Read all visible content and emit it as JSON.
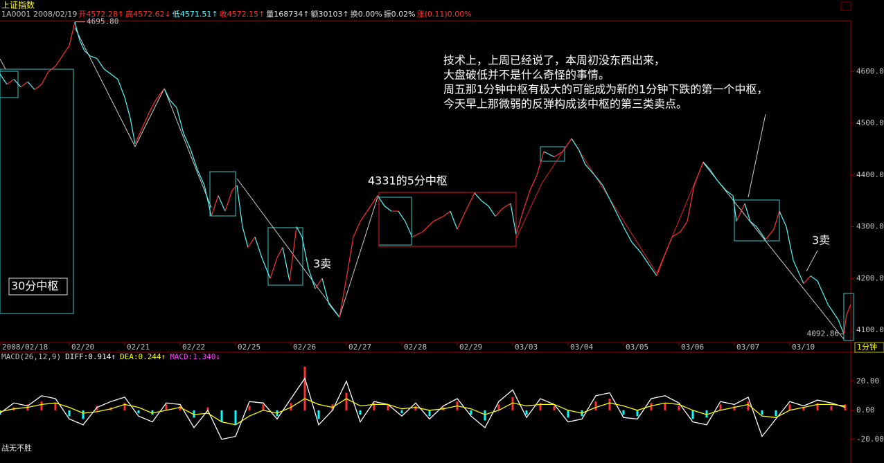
{
  "chart_data": [
    {
      "type": "line",
      "title": "上证指数",
      "info": [
        {
          "text": "1A0001 2008/02/19",
          "color": "#c0c0c0"
        },
        {
          "text": "开4572.28↑",
          "color": "#ff3232"
        },
        {
          "text": "高4572.62↓",
          "color": "#ff3232"
        },
        {
          "text": "低4571.51↑",
          "color": "#54fcfc"
        },
        {
          "text": "收4572.15↑",
          "color": "#ff3232"
        },
        {
          "text": "量168734↑",
          "color": "#e0e0e0"
        },
        {
          "text": "额30103↑",
          "color": "#e0e0e0"
        },
        {
          "text": "换0.00%",
          "color": "#e0e0e0"
        },
        {
          "text": "振0.02%",
          "color": "#e0e0e0"
        },
        {
          "text": "涨(0.11)0.00%",
          "color": "#ff3232"
        }
      ],
      "period": "1分钟",
      "x": [
        0,
        30,
        60,
        90,
        120,
        150,
        180,
        210,
        240,
        270,
        300,
        324,
        345,
        366,
        390,
        420,
        450,
        480,
        510,
        540,
        564,
        585,
        615,
        645,
        675,
        711,
        735,
        765,
        795,
        825,
        855,
        885,
        915,
        945,
        975,
        1005,
        1026,
        1050,
        1074,
        1104,
        1134,
        1170,
        1200,
        1224,
        1254,
        1284,
        1308,
        1335,
        1365,
        1395,
        1425,
        1470,
        1500,
        1530,
        1560,
        1590,
        1635,
        1665,
        1695,
        1725,
        1755,
        1785,
        1830,
        1875,
        1920,
        1950,
        1980,
        2016,
        2055,
        2085,
        2115,
        2145,
        2175,
        2211,
        2235,
        2265,
        2295,
        2325,
        2355,
        2400,
        2436,
        2475,
        2505,
        2535,
        2574,
        2610,
        2655,
        2700,
        2736,
        2775,
        2805,
        2844,
        2874,
        2910,
        2946,
        2976,
        3006,
        3045,
        3075,
        3105,
        3144,
        3174,
        3189,
        3225,
        3249,
        3276,
        3315,
        3351,
        3375,
        3405,
        3435,
        3480,
        3510,
        3540,
        3585,
        3630,
        3654,
        3666,
        3684
      ],
      "values": [
        4595,
        4575,
        4585,
        4570,
        4580,
        4565,
        4575,
        4600,
        4610,
        4630,
        4650,
        4695.8,
        4660,
        4640,
        4630,
        4625,
        4605,
        4595,
        4585,
        4550,
        4510,
        4460,
        4490,
        4520,
        4545,
        4567,
        4545,
        4530,
        4480,
        4450,
        4410,
        4380,
        4320,
        4360,
        4330,
        4370,
        4380,
        4300,
        4260,
        4280,
        4240,
        4200,
        4240,
        4260,
        4195,
        4300,
        4280,
        4220,
        4180,
        4200,
        4150,
        4125,
        4200,
        4280,
        4310,
        4330,
        4360,
        4340,
        4330,
        4330,
        4310,
        4280,
        4290,
        4310,
        4320,
        4330,
        4295,
        4330,
        4365,
        4350,
        4340,
        4320,
        4335,
        4345,
        4285,
        4330,
        4370,
        4400,
        4445,
        4435,
        4445,
        4470,
        4450,
        4420,
        4400,
        4380,
        4340,
        4300,
        4270,
        4250,
        4230,
        4205,
        4240,
        4280,
        4290,
        4310,
        4380,
        4425,
        4410,
        4390,
        4370,
        4360,
        4310,
        4345,
        4310,
        4300,
        4275,
        4295,
        4330,
        4300,
        4235,
        4190,
        4205,
        4195,
        4150,
        4120,
        4092.86,
        4130,
        4150
      ],
      "up_color": "#ff3232",
      "down_color": "#54fcfc",
      "xlim": [
        0,
        3684
      ],
      "xticks": [
        {
          "value": 0,
          "label": "2008/02/18"
        },
        {
          "value": 300,
          "label": "02/20"
        },
        {
          "value": 540,
          "label": "02/21"
        },
        {
          "value": 780,
          "label": "02/22"
        },
        {
          "value": 1020,
          "label": "02/25"
        },
        {
          "value": 1260,
          "label": "02/26"
        },
        {
          "value": 1500,
          "label": "02/27"
        },
        {
          "value": 1740,
          "label": "02/28"
        },
        {
          "value": 1980,
          "label": "02/29"
        },
        {
          "value": 2220,
          "label": "03/03"
        },
        {
          "value": 2460,
          "label": "03/04"
        },
        {
          "value": 2700,
          "label": "03/05"
        },
        {
          "value": 2940,
          "label": "03/06"
        },
        {
          "value": 3180,
          "label": "03/07"
        },
        {
          "value": 3420,
          "label": "03/10"
        }
      ],
      "ylim": [
        4076,
        4698
      ],
      "yticks": [
        {
          "value": 4100,
          "label": "4100.0"
        },
        {
          "value": 4200,
          "label": "4200.0"
        },
        {
          "value": 4300,
          "label": "4300.0"
        },
        {
          "value": 4400,
          "label": "4400.0"
        },
        {
          "value": 4500,
          "label": "4500.0"
        },
        {
          "value": 4600,
          "label": "4600.0"
        }
      ],
      "extreme_labels": [
        {
          "x": 324,
          "value": 4695.8,
          "label": "4695.80"
        },
        {
          "x": 3654,
          "value": 4092.86,
          "label": "4092.86"
        }
      ],
      "annotations": [
        "技术上，上周已经说了，本周初没东西出来，",
        "大盘破低并不是什么奇怪的事情。",
        "周五那1分钟中枢有极大的可能成为新的1分钟下跌的第一个中枢，",
        "今天早上那微弱的反弹构成该中枢的第三类卖点。"
      ],
      "labels": [
        "30分中枢",
        "4331的5分中枢",
        "3卖",
        "3卖"
      ]
    },
    {
      "type": "macd",
      "title": "MACD(26,12,9)",
      "x": [
        0,
        60,
        120,
        180,
        240,
        300,
        360,
        420,
        480,
        540,
        600,
        660,
        720,
        780,
        840,
        900,
        960,
        1020,
        1080,
        1140,
        1200,
        1260,
        1320,
        1380,
        1440,
        1500,
        1560,
        1620,
        1680,
        1740,
        1800,
        1860,
        1920,
        1980,
        2040,
        2100,
        2160,
        2220,
        2280,
        2340,
        2400,
        2460,
        2520,
        2580,
        2640,
        2700,
        2760,
        2820,
        2880,
        2940,
        3000,
        3060,
        3120,
        3180,
        3240,
        3300,
        3360,
        3420,
        3480,
        3540,
        3600,
        3660
      ],
      "xlim": [
        0,
        3684
      ],
      "ylim": [
        -32,
        38
      ],
      "yticks": [
        {
          "value": 20,
          "label": "20.00"
        },
        {
          "value": 0,
          "label": "0.00"
        },
        {
          "value": -20,
          "label": "-20.00"
        }
      ],
      "series": [
        {
          "name": "DIFF:0.914↑",
          "color": "#ffffff",
          "values": [
            -2,
            5,
            3,
            10,
            8,
            -6,
            -10,
            2,
            6,
            9,
            -4,
            -8,
            5,
            4,
            -12,
            0,
            -20,
            -18,
            6,
            5,
            -6,
            8,
            22,
            -10,
            0,
            20,
            -8,
            6,
            4,
            -4,
            5,
            -6,
            3,
            8,
            -4,
            -12,
            6,
            14,
            -5,
            8,
            4,
            -8,
            -6,
            10,
            12,
            -5,
            -6,
            8,
            10,
            5,
            -8,
            -10,
            6,
            4,
            9,
            -18,
            -6,
            6,
            3,
            7,
            5,
            2
          ]
        },
        {
          "name": "DEA:0.244↑",
          "color": "#ffff00",
          "values": [
            -1,
            1,
            2,
            4,
            5,
            2,
            -2,
            -1,
            1,
            4,
            2,
            -2,
            0,
            2,
            -3,
            -2,
            -8,
            -10,
            -4,
            0,
            -2,
            2,
            8,
            4,
            2,
            8,
            3,
            4,
            4,
            1,
            2,
            0,
            1,
            3,
            1,
            -3,
            0,
            5,
            3,
            4,
            4,
            0,
            -2,
            2,
            5,
            3,
            0,
            3,
            5,
            4,
            0,
            -3,
            0,
            2,
            4,
            -4,
            -5,
            0,
            2,
            4,
            4,
            3
          ]
        },
        {
          "name": "MACD:1.340↓",
          "color": "#ff40ff",
          "up_color": "#ff3232",
          "down_color": "#00ffff",
          "values": [
            -3,
            2,
            4,
            6,
            5,
            -4,
            -6,
            3,
            2,
            5,
            -2,
            -3,
            4,
            3,
            -5,
            2,
            -8,
            -10,
            3,
            4,
            -4,
            5,
            30,
            -6,
            4,
            12,
            -3,
            5,
            4,
            -2,
            3,
            -4,
            2,
            6,
            -3,
            -7,
            4,
            9,
            -3,
            5,
            3,
            -5,
            -4,
            6,
            8,
            -3,
            -4,
            5,
            5,
            3,
            -6,
            -5,
            4,
            3,
            6,
            -3,
            -4,
            4,
            2,
            5,
            3,
            4
          ]
        }
      ]
    }
  ],
  "footer": "战无不胜"
}
